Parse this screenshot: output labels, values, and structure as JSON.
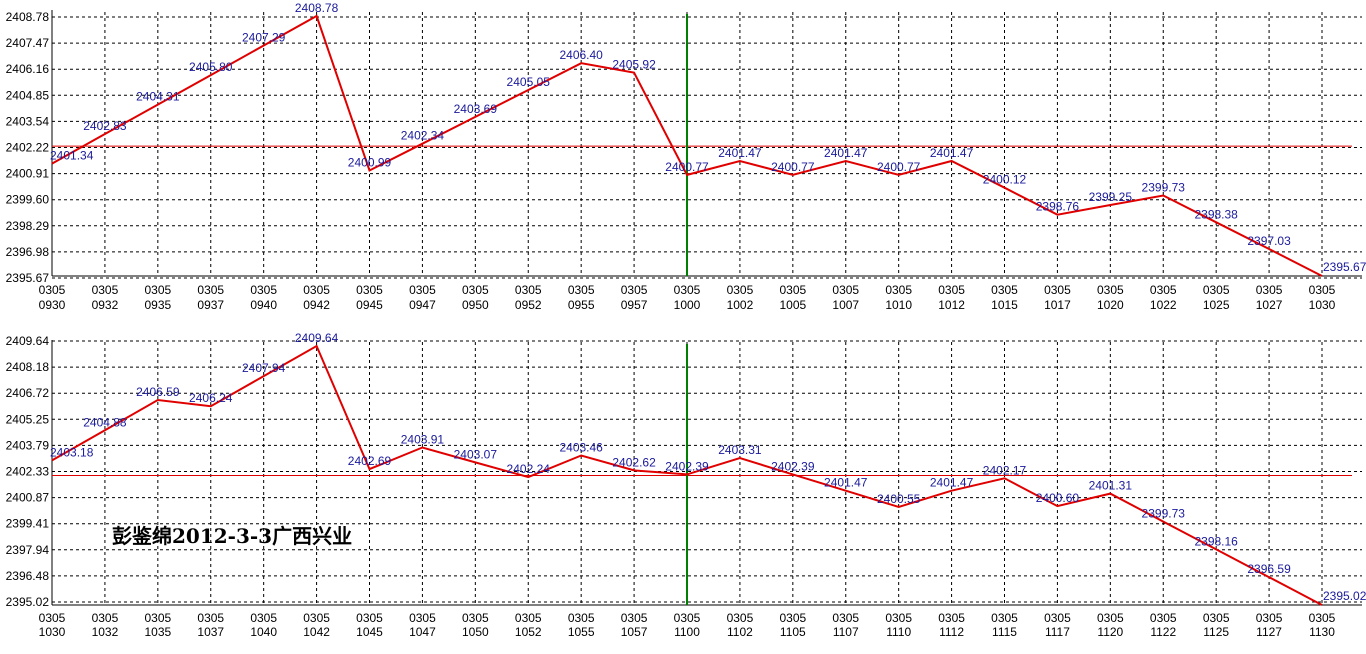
{
  "watermark": "彭鉴绵2012-3-3广西兴业",
  "colors": {
    "series_line": "#e00000",
    "reference_line": "#e00000",
    "marker_line": "#008000",
    "value_label": "#1a1a9c",
    "grid": "#000000",
    "axis": "#000000"
  },
  "chart_data": [
    {
      "type": "line",
      "x_date_labels": [
        "0305",
        "0305",
        "0305",
        "0305",
        "0305",
        "0305",
        "0305",
        "0305",
        "0305",
        "0305",
        "0305",
        "0305",
        "0305",
        "0305",
        "0305",
        "0305",
        "0305",
        "0305",
        "0305",
        "0305",
        "0305",
        "0305",
        "0305",
        "0305",
        "0305"
      ],
      "x_time_labels": [
        "0930",
        "0932",
        "0935",
        "0937",
        "0940",
        "0942",
        "0945",
        "0947",
        "0950",
        "0952",
        "0955",
        "0957",
        "1000",
        "1002",
        "1005",
        "1007",
        "1010",
        "1012",
        "1015",
        "1017",
        "1020",
        "1022",
        "1025",
        "1027",
        "1030"
      ],
      "y_tick_labels": [
        "2408.78",
        "2407.47",
        "2406.16",
        "2404.85",
        "2403.54",
        "2402.22",
        "2400.91",
        "2399.60",
        "2398.29",
        "2396.98",
        "2395.67"
      ],
      "ylim": [
        2395.67,
        2408.78
      ],
      "grid": true,
      "reference_line": 2402.22,
      "marker_x_index": 12,
      "series": [
        {
          "values": [
            2401.34,
            2402.83,
            2404.31,
            2405.8,
            2407.29,
            2408.78,
            2400.99,
            2402.34,
            2403.69,
            2405.05,
            2406.4,
            2405.92,
            2400.77,
            2401.47,
            2400.77,
            2401.47,
            2400.77,
            2401.47,
            2400.12,
            2398.76,
            2399.25,
            2399.73,
            2398.38,
            2397.03,
            2395.67
          ]
        }
      ],
      "data_labels": [
        "2401.34",
        "2402.83",
        "2404.31",
        "2405.80",
        "2407.29",
        "2408.78",
        "2400.99",
        "2402.34",
        "2403.69",
        "2405.05",
        "2406.40",
        "2405.92",
        "2400.77",
        "2401.47",
        "2400.77",
        "2401.47",
        "2400.77",
        "2401.47",
        "2400.12",
        "2398.76",
        "2399.25",
        "2399.73",
        "2398.38",
        "2397.03",
        "2395.67"
      ]
    },
    {
      "type": "line",
      "x_date_labels": [
        "0305",
        "0305",
        "0305",
        "0305",
        "0305",
        "0305",
        "0305",
        "0305",
        "0305",
        "0305",
        "0305",
        "0305",
        "0305",
        "0305",
        "0305",
        "0305",
        "0305",
        "0305",
        "0305",
        "0305",
        "0305",
        "0305",
        "0305",
        "0305",
        "0305"
      ],
      "x_time_labels": [
        "1030",
        "1032",
        "1035",
        "1037",
        "1040",
        "1042",
        "1045",
        "1047",
        "1050",
        "1052",
        "1055",
        "1057",
        "1100",
        "1102",
        "1105",
        "1107",
        "1110",
        "1112",
        "1115",
        "1117",
        "1120",
        "1122",
        "1125",
        "1127",
        "1130"
      ],
      "y_tick_labels": [
        "2409.64",
        "2408.18",
        "2406.72",
        "2405.25",
        "2403.79",
        "2402.33",
        "2400.87",
        "2399.41",
        "2397.94",
        "2396.48",
        "2395.02"
      ],
      "ylim": [
        2395.02,
        2409.64
      ],
      "grid": true,
      "reference_line": 2402.33,
      "marker_x_index": 12,
      "series": [
        {
          "values": [
            2403.18,
            2404.88,
            2406.59,
            2406.24,
            2407.94,
            2409.64,
            2402.69,
            2403.91,
            2403.07,
            2402.24,
            2403.46,
            2402.62,
            2402.39,
            2403.31,
            2402.39,
            2401.47,
            2400.55,
            2401.47,
            2402.17,
            2400.6,
            2401.31,
            2399.73,
            2398.16,
            2396.59,
            2395.02
          ]
        }
      ],
      "data_labels": [
        "2403.18",
        "2404.88",
        "2406.59",
        "2406.24",
        "2407.94",
        "2409.64",
        "2402.69",
        "2403.91",
        "2403.07",
        "2402.24",
        "2403.46",
        "2402.62",
        "2402.39",
        "2403.31",
        "2402.39",
        "2401.47",
        "2400.55",
        "2401.47",
        "2402.17",
        "2400.60",
        "2401.31",
        "2399.73",
        "2398.16",
        "2396.59",
        "2395.02"
      ]
    }
  ]
}
